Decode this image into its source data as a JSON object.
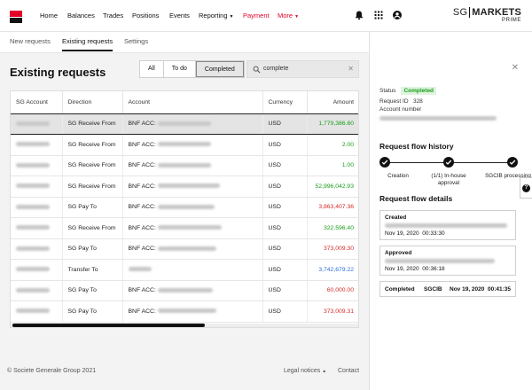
{
  "nav": {
    "items": [
      "Home",
      "Balances",
      "Trades",
      "Positions",
      "Events",
      "Reporting",
      "Payment",
      "More"
    ],
    "brand_sg": "SG",
    "brand_markets": "MARKETS",
    "brand_prime": "PRIME",
    "accent_color": "#e60028"
  },
  "subtabs": [
    "New requests",
    "Existing requests",
    "Settings"
  ],
  "page": {
    "title": "Existing requests",
    "filters": [
      "All",
      "To do",
      "Completed"
    ],
    "active_filter": "Completed",
    "search_value": "complete"
  },
  "table": {
    "columns": [
      "SG Account",
      "Direction",
      "Account",
      "Currency",
      "Amount"
    ],
    "rows": [
      {
        "direction": "SG Receive From",
        "account_prefix": "BNF ACC:",
        "currency": "USD",
        "amount": "1,779,386.60",
        "tone": "pos",
        "selected": true
      },
      {
        "direction": "SG Receive From",
        "account_prefix": "BNF ACC:",
        "currency": "USD",
        "amount": "2.00",
        "tone": "pos"
      },
      {
        "direction": "SG Receive From",
        "account_prefix": "BNF ACC:",
        "currency": "USD",
        "amount": "1.00",
        "tone": "pos"
      },
      {
        "direction": "SG Receive From",
        "account_prefix": "BNF ACC:",
        "currency": "USD",
        "amount": "52,996,042.93",
        "tone": "pos"
      },
      {
        "direction": "SG Pay To",
        "account_prefix": "BNF ACC:",
        "currency": "USD",
        "amount": "3,863,407.36",
        "tone": "neg"
      },
      {
        "direction": "SG Receive From",
        "account_prefix": "BNF ACC:",
        "currency": "USD",
        "amount": "322,596.40",
        "tone": "pos"
      },
      {
        "direction": "SG Pay To",
        "account_prefix": "BNF ACC:",
        "currency": "USD",
        "amount": "373,009.30",
        "tone": "neg"
      },
      {
        "direction": "Transfer To",
        "account_prefix": "",
        "currency": "USD",
        "amount": "3,742,679.22",
        "tone": "neu"
      },
      {
        "direction": "SG Pay To",
        "account_prefix": "BNF ACC:",
        "currency": "USD",
        "amount": "60,000.00",
        "tone": "neg"
      },
      {
        "direction": "SG Pay To",
        "account_prefix": "BNF ACC:",
        "currency": "USD",
        "amount": "373,009.31",
        "tone": "neg"
      }
    ]
  },
  "footer": {
    "copyright": "© Societe Generale Group 2021",
    "legal": "Legal notices",
    "contact": "Contact"
  },
  "panel": {
    "status_label": "Status",
    "status_value": "Completed",
    "request_id_label": "Request ID",
    "request_id_value": "328",
    "account_number_label": "Account number",
    "history_title": "Request flow history",
    "flow_steps": [
      "Creation",
      "(1/1) In-house approval",
      "SGCIB processing"
    ],
    "details_title": "Request flow details",
    "created_label": "Created",
    "created_date": "Nov 19, 2020",
    "created_time": "00:33:30",
    "approved_label": "Approved",
    "approved_date": "Nov 19, 2020",
    "approved_time": "00:36:18",
    "completed_label": "Completed",
    "completed_by": "SGCIB",
    "completed_date": "Nov 19, 2020",
    "completed_time": "00:41:35"
  }
}
